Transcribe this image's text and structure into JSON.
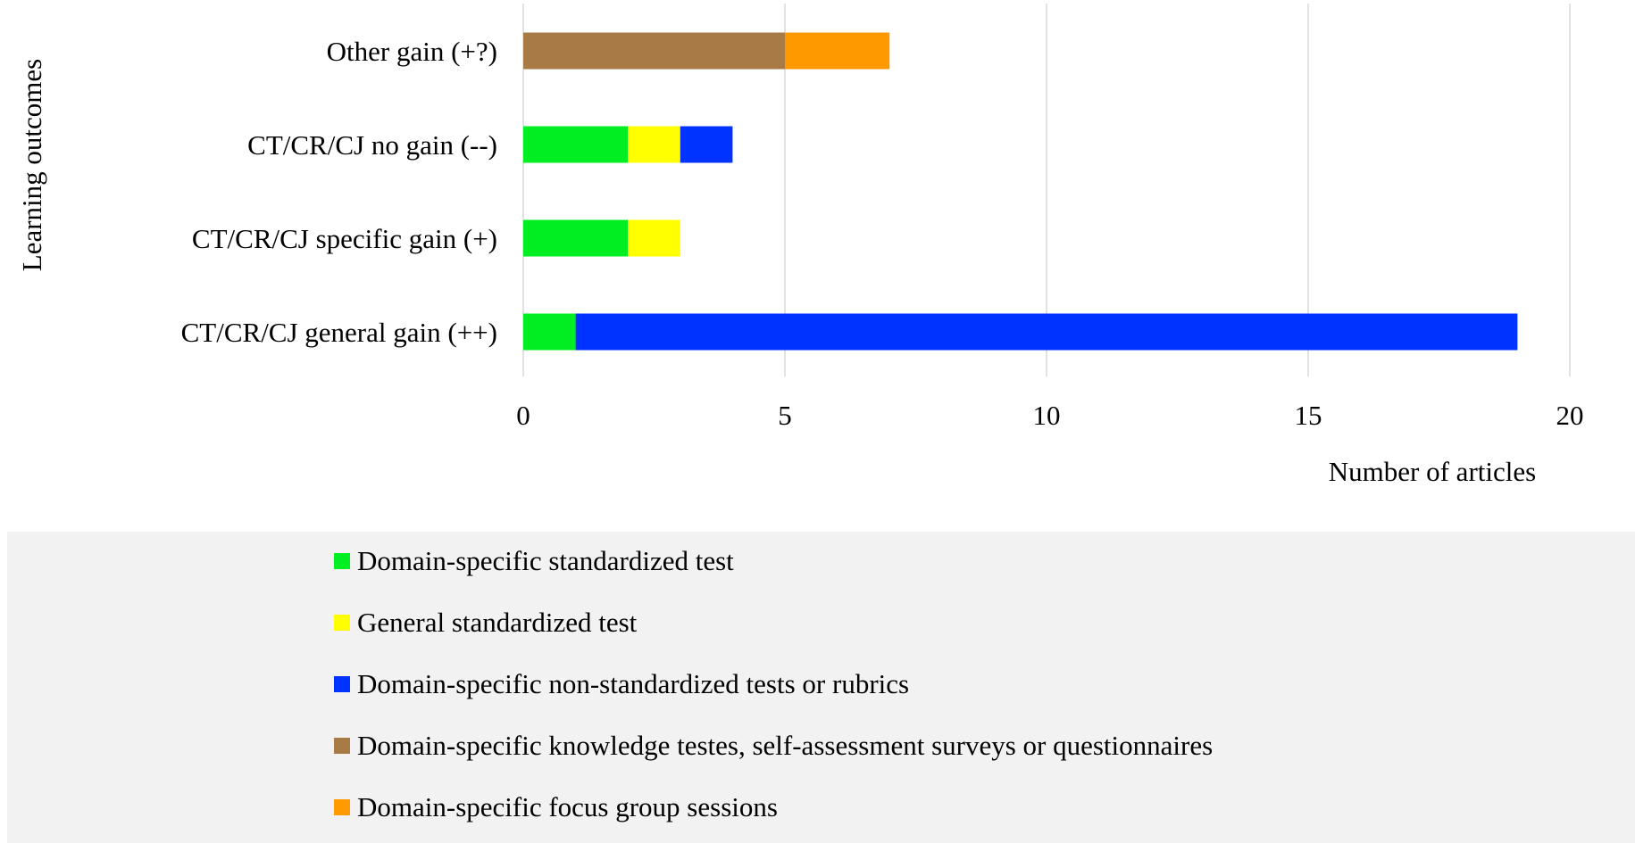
{
  "chart_data": {
    "type": "bar",
    "orientation": "horizontal",
    "stacked": true,
    "title": "",
    "xlabel": "Number of articles",
    "ylabel": "Learning outcomes",
    "xlim": [
      0,
      20
    ],
    "xticks": [
      0,
      5,
      10,
      15,
      20
    ],
    "grid": "vertical",
    "legend_position": "bottom",
    "categories": [
      "Other gain (+?)",
      "CT/CR/CJ no gain (--)",
      "CT/CR/CJ specific gain (+)",
      "CT/CR/CJ general gain (++)"
    ],
    "series": [
      {
        "name": "Domain-specific standardized test",
        "color": "#00ee22",
        "values": [
          0,
          2,
          2,
          1
        ]
      },
      {
        "name": "General standardized test",
        "color": "#ffff00",
        "values": [
          0,
          1,
          1,
          0
        ]
      },
      {
        "name": "Domain-specific non-standardized tests or rubrics",
        "color": "#0033ff",
        "values": [
          0,
          1,
          0,
          18
        ]
      },
      {
        "name": "Domain-specific knowledge testes, self-assessment surveys or questionnaires",
        "color": "#a87a45",
        "values": [
          5,
          0,
          0,
          0
        ]
      },
      {
        "name": "Domain-specific focus group sessions",
        "color": "#ff9900",
        "values": [
          2,
          0,
          0,
          0
        ]
      }
    ]
  },
  "colors": {
    "gridline": "#d9d9d9",
    "legend_background": "#f2f2f2"
  }
}
